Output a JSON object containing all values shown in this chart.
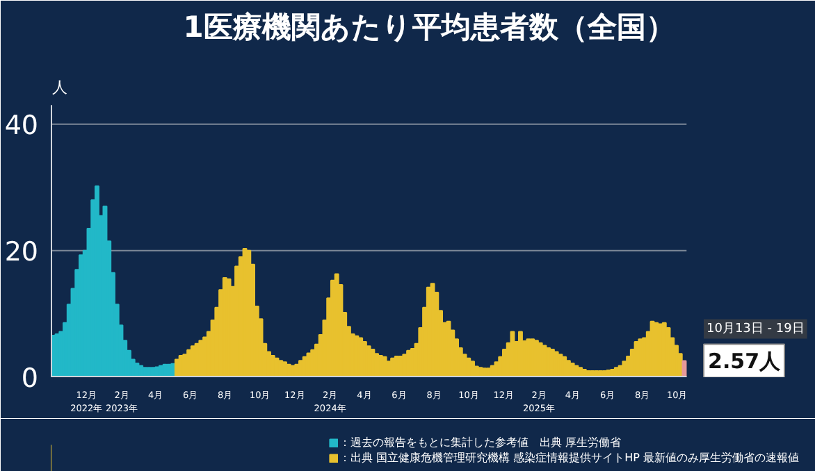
{
  "chart_data": {
    "type": "bar",
    "title": "1医療機関あたり平均患者数（全国）",
    "ylabel": "人",
    "series": [
      {
        "name": "：過去の報告をもとに集計した参考値　出典 厚生労働省",
        "color": "#22b8c8",
        "x": [
          "2022-10-03",
          "2022-10-10",
          "2022-10-17",
          "2022-10-24",
          "2022-10-31",
          "2022-11-07",
          "2022-11-14",
          "2022-11-21",
          "2022-11-28",
          "2022-12-05",
          "2022-12-12",
          "2022-12-19",
          "2022-12-26",
          "2023-01-02",
          "2023-01-09",
          "2023-01-16",
          "2023-01-23",
          "2023-01-30",
          "2023-02-06",
          "2023-02-13",
          "2023-02-20",
          "2023-02-27",
          "2023-03-06",
          "2023-03-13",
          "2023-03-20",
          "2023-03-27",
          "2023-04-03",
          "2023-04-10",
          "2023-04-17",
          "2023-04-24",
          "2023-05-01"
        ],
        "values": [
          6.6,
          6.8,
          7.2,
          8.6,
          11.5,
          14,
          17,
          19.3,
          20,
          23.5,
          28,
          30.2,
          25.5,
          27,
          21.5,
          16.5,
          11.5,
          8.2,
          5.8,
          4.2,
          2.8,
          2.2,
          1.8,
          1.5,
          1.5,
          1.5,
          1.6,
          1.8,
          2,
          2,
          2.1
        ]
      },
      {
        "name": "：出典 国立健康危機管理研究機構 感染症情報提供サイトHP 最新値のみ厚生労働省の速報値",
        "color": "#e8c12e",
        "x": [
          "2023-05-08",
          "2023-05-15",
          "2023-05-22",
          "2023-05-29",
          "2023-06-05",
          "2023-06-12",
          "2023-06-19",
          "2023-06-26",
          "2023-07-03",
          "2023-07-10",
          "2023-07-17",
          "2023-07-24",
          "2023-07-31",
          "2023-08-07",
          "2023-08-14",
          "2023-08-21",
          "2023-08-28",
          "2023-09-04",
          "2023-09-11",
          "2023-09-18",
          "2023-09-25",
          "2023-10-02",
          "2023-10-09",
          "2023-10-16",
          "2023-10-23",
          "2023-10-30",
          "2023-11-06",
          "2023-11-13",
          "2023-11-20",
          "2023-11-27",
          "2023-12-04",
          "2023-12-11",
          "2023-12-18",
          "2023-12-25",
          "2024-01-01",
          "2024-01-08",
          "2024-01-15",
          "2024-01-22",
          "2024-01-29",
          "2024-02-05",
          "2024-02-12",
          "2024-02-19",
          "2024-02-26",
          "2024-03-04",
          "2024-03-11",
          "2024-03-18",
          "2024-03-25",
          "2024-04-01",
          "2024-04-08",
          "2024-04-15",
          "2024-04-22",
          "2024-04-29",
          "2024-05-06",
          "2024-05-13",
          "2024-05-20",
          "2024-05-27",
          "2024-06-03",
          "2024-06-10",
          "2024-06-17",
          "2024-06-24",
          "2024-07-01",
          "2024-07-08",
          "2024-07-15",
          "2024-07-22",
          "2024-07-29",
          "2024-08-05",
          "2024-08-12",
          "2024-08-19",
          "2024-08-26",
          "2024-09-02",
          "2024-09-09",
          "2024-09-16",
          "2024-09-23",
          "2024-09-30",
          "2024-10-07",
          "2024-10-14",
          "2024-10-21",
          "2024-10-28",
          "2024-11-04",
          "2024-11-11",
          "2024-11-18",
          "2024-11-25",
          "2024-12-02",
          "2024-12-09",
          "2024-12-16",
          "2024-12-23",
          "2024-12-30",
          "2025-01-06",
          "2025-01-13",
          "2025-01-20",
          "2025-01-27",
          "2025-02-03",
          "2025-02-10",
          "2025-02-17",
          "2025-02-24",
          "2025-03-03",
          "2025-03-10",
          "2025-03-17",
          "2025-03-24",
          "2025-03-31",
          "2025-04-07",
          "2025-04-14",
          "2025-04-21",
          "2025-04-28",
          "2025-05-05",
          "2025-05-12",
          "2025-05-19",
          "2025-05-26",
          "2025-06-02",
          "2025-06-09",
          "2025-06-16",
          "2025-06-23",
          "2025-06-30",
          "2025-07-07",
          "2025-07-14",
          "2025-07-21",
          "2025-07-28",
          "2025-08-04",
          "2025-08-11",
          "2025-08-18",
          "2025-08-25",
          "2025-09-01",
          "2025-09-08",
          "2025-09-15",
          "2025-09-22",
          "2025-09-29",
          "2025-10-06"
        ],
        "values": [
          2.8,
          3.4,
          3.6,
          4.3,
          4.9,
          5.3,
          5.8,
          6.3,
          7.2,
          9,
          11,
          13.8,
          15.7,
          15.5,
          14.3,
          17.5,
          19,
          20.3,
          20,
          17.8,
          11.2,
          9.2,
          5.3,
          4.0,
          3.4,
          3.0,
          2.6,
          2.4,
          2.0,
          1.8,
          2.0,
          2.6,
          3.2,
          3.8,
          4.3,
          5.2,
          6.7,
          9.0,
          12.5,
          15.3,
          16.3,
          14.6,
          10.2,
          8.0,
          6.8,
          6.5,
          6.2,
          5.6,
          4.9,
          4.4,
          3.7,
          3.4,
          3.2,
          2.5,
          3.0,
          3.3,
          3.3,
          3.6,
          4.2,
          4.5,
          5.3,
          7.8,
          11.0,
          14.2,
          14.8,
          13.4,
          10.5,
          8.6,
          8.8,
          7.4,
          6.0,
          4.6,
          3.6,
          3.0,
          2.5,
          1.7,
          1.5,
          1.4,
          1.4,
          1.8,
          2.4,
          3.2,
          4.4,
          5.4,
          7.2,
          5.6,
          7.2,
          5.7,
          6.0,
          6.0,
          5.8,
          5.4,
          5.0,
          4.6,
          4.4,
          4.0,
          3.6,
          3.2,
          2.6,
          2.2,
          1.8,
          1.5,
          1.2,
          1.0,
          1.0,
          1.0,
          1.0,
          1.0,
          1.1,
          1.2,
          1.5,
          1.8,
          2.5,
          3.3,
          4.4,
          5.6,
          6.0,
          6.2,
          7.2,
          8.8,
          8.6,
          8.4,
          8.6,
          7.8,
          6.2,
          5.0,
          3.7
        ]
      },
      {
        "color": "#e89a9a",
        "x": [
          "2025-10-13"
        ],
        "values": [
          2.57
        ]
      }
    ],
    "xlim": [
      "2022-09-29",
      "2025-10-17"
    ],
    "xticks": [
      {
        "value": "2022-12-01",
        "label": "12月\n2022年"
      },
      {
        "value": "2023-02-01",
        "label": "2月\n2023年"
      },
      {
        "value": "2023-04-01",
        "label": "4月"
      },
      {
        "value": "2023-06-01",
        "label": "6月"
      },
      {
        "value": "2023-08-01",
        "label": "8月"
      },
      {
        "value": "2023-10-01",
        "label": "10月"
      },
      {
        "value": "2023-12-01",
        "label": "12月"
      },
      {
        "value": "2024-02-01",
        "label": "2月\n2024年"
      },
      {
        "value": "2024-04-01",
        "label": "4月"
      },
      {
        "value": "2024-06-01",
        "label": "6月"
      },
      {
        "value": "2024-08-01",
        "label": "8月"
      },
      {
        "value": "2024-10-01",
        "label": "10月"
      },
      {
        "value": "2024-12-01",
        "label": "12月"
      },
      {
        "value": "2025-02-01",
        "label": "2月\n2025年"
      },
      {
        "value": "2025-04-01",
        "label": "4月"
      },
      {
        "value": "2025-06-01",
        "label": "6月"
      },
      {
        "value": "2025-08-01",
        "label": "8月"
      },
      {
        "value": "2025-10-01",
        "label": "10月"
      }
    ],
    "ylim": [
      0,
      43
    ],
    "yticks": [
      0,
      20,
      40
    ],
    "grid": "y",
    "legend": "bottom",
    "annotations": [
      "10月13日 - 19日",
      {
        "text": "2.57人",
        "x": "2025-10-13",
        "y": 2.57
      }
    ]
  }
}
